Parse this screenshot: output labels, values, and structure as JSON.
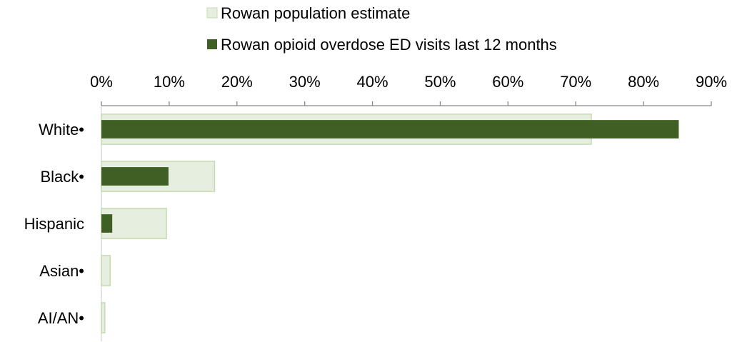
{
  "chart_data": {
    "type": "bar",
    "orientation": "horizontal",
    "axis_position": "top",
    "categories": [
      "White•",
      "Black•",
      "Hispanic",
      "Asian•",
      "AI/AN•"
    ],
    "series": [
      {
        "name": "Rowan population estimate",
        "values": [
          72.3,
          16.7,
          9.6,
          1.3,
          0.5
        ],
        "color": "#e6efdf",
        "stroke": "#c4dbb0"
      },
      {
        "name": "Rowan opioid overdose ED visits last 12 months",
        "values": [
          85.2,
          9.9,
          1.6,
          0.0,
          0.0
        ],
        "color": "#3f5f25"
      }
    ],
    "xlim": [
      0,
      90
    ],
    "xticks": [
      "0%",
      "10%",
      "20%",
      "30%",
      "40%",
      "50%",
      "60%",
      "70%",
      "80%",
      "90%"
    ],
    "xtick_values": [
      0,
      10,
      20,
      30,
      40,
      50,
      60,
      70,
      80,
      90
    ],
    "grid": false,
    "legend_position": "top"
  }
}
